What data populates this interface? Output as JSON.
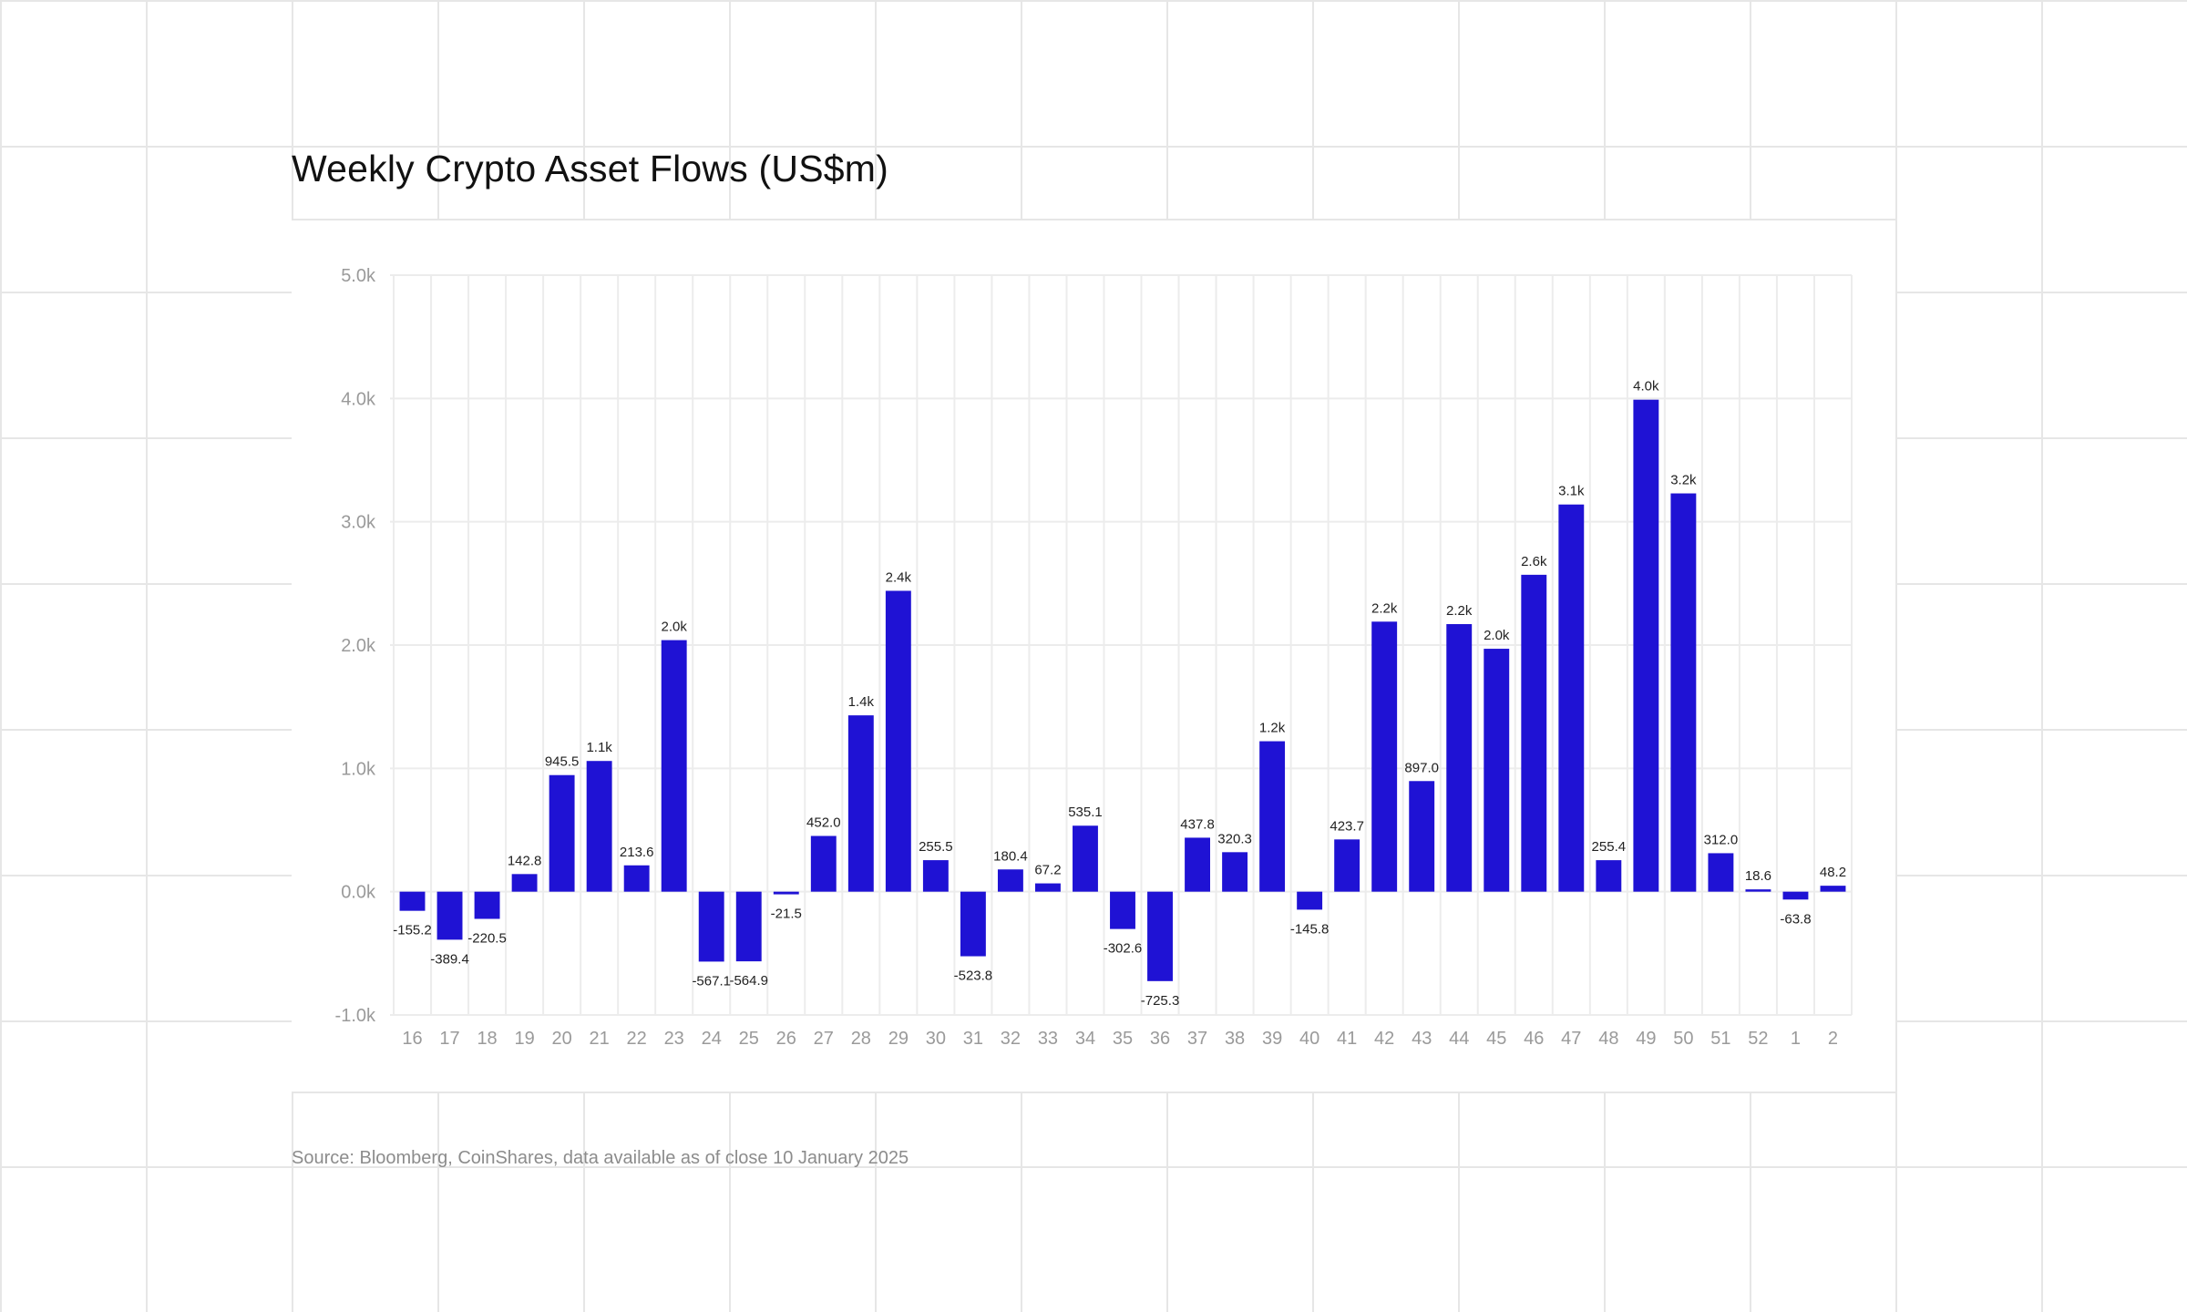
{
  "title": "Weekly Crypto Asset Flows (US$m)",
  "source": "Source: Bloomberg, CoinShares, data available as of close 10 January 2025",
  "colors": {
    "bar": "#1f12d4",
    "grid": "#ececec",
    "tick": "#9a9a9a",
    "label": "#222222"
  },
  "chart_data": {
    "type": "bar",
    "title": "Weekly Crypto Asset Flows (US$m)",
    "xlabel": "",
    "ylabel": "",
    "ylim": [
      -1000,
      5000
    ],
    "yticks": [
      -1000,
      0,
      1000,
      2000,
      3000,
      4000,
      5000
    ],
    "ytick_labels": [
      "-1.0k",
      "0.0k",
      "1.0k",
      "2.0k",
      "3.0k",
      "4.0k",
      "5.0k"
    ],
    "grid": true,
    "categories": [
      "16",
      "17",
      "18",
      "19",
      "20",
      "21",
      "22",
      "23",
      "24",
      "25",
      "26",
      "27",
      "28",
      "29",
      "30",
      "31",
      "32",
      "33",
      "34",
      "35",
      "36",
      "37",
      "38",
      "39",
      "40",
      "41",
      "42",
      "43",
      "44",
      "45",
      "46",
      "47",
      "48",
      "49",
      "50",
      "51",
      "52",
      "1",
      "2"
    ],
    "values": [
      -155.2,
      -389.4,
      -220.5,
      142.8,
      945.5,
      1060,
      213.6,
      2040,
      -567.1,
      -564.9,
      -21.5,
      452.0,
      1430,
      2440,
      255.5,
      -523.8,
      180.4,
      67.2,
      535.1,
      -302.6,
      -725.3,
      437.8,
      320.3,
      1220,
      -145.8,
      423.7,
      2190,
      897.0,
      2170,
      1970,
      2570,
      3140,
      255.4,
      3990,
      3230,
      312.0,
      18.6,
      -63.8,
      48.2
    ],
    "data_labels": [
      "-155.2",
      "-389.4",
      "-220.5",
      "142.8",
      "945.5",
      "1.1k",
      "213.6",
      "2.0k",
      "-567.1",
      "-564.9",
      "-21.5",
      "452.0",
      "1.4k",
      "2.4k",
      "255.5",
      "-523.8",
      "180.4",
      "67.2",
      "535.1",
      "-302.6",
      "-725.3",
      "437.8",
      "320.3",
      "1.2k",
      "-145.8",
      "423.7",
      "2.2k",
      "897.0",
      "2.2k",
      "2.0k",
      "2.6k",
      "3.1k",
      "255.4",
      "4.0k",
      "3.2k",
      "312.0",
      "18.6",
      "-63.8",
      "48.2"
    ]
  }
}
